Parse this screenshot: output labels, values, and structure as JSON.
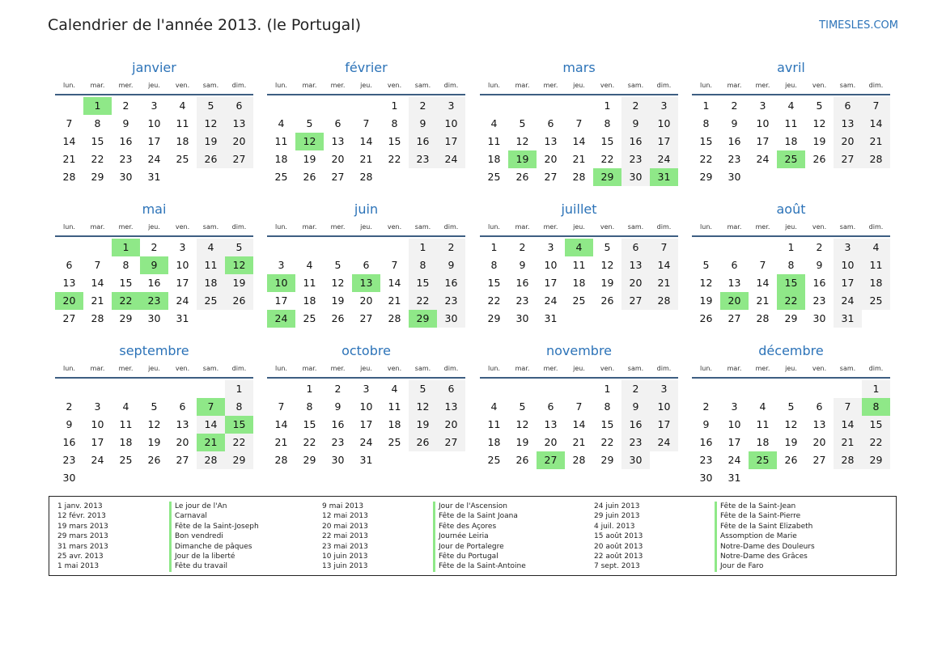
{
  "title": "Calendrier de l'année 2013. (le Portugal)",
  "site": "TIMESLES.COM",
  "colors": {
    "accent": "#2c73b8",
    "holiday": "#8fe888",
    "weekend": "#f2f2f2",
    "rule": "#3d5e82"
  },
  "weekdays": [
    "lun.",
    "mar.",
    "mer.",
    "jeu.",
    "ven.",
    "sam.",
    "dim."
  ],
  "months": [
    {
      "name": "janvier",
      "offset": 1,
      "days": 31,
      "holidays": [
        1
      ]
    },
    {
      "name": "février",
      "offset": 4,
      "days": 28,
      "holidays": [
        12
      ]
    },
    {
      "name": "mars",
      "offset": 4,
      "days": 31,
      "holidays": [
        19,
        29,
        31
      ]
    },
    {
      "name": "avril",
      "offset": 0,
      "days": 30,
      "holidays": [
        25
      ]
    },
    {
      "name": "mai",
      "offset": 2,
      "days": 31,
      "holidays": [
        1,
        9,
        12,
        20,
        22,
        23
      ]
    },
    {
      "name": "juin",
      "offset": 5,
      "days": 30,
      "holidays": [
        10,
        13,
        24,
        29
      ]
    },
    {
      "name": "juillet",
      "offset": 0,
      "days": 31,
      "holidays": [
        4
      ]
    },
    {
      "name": "août",
      "offset": 3,
      "days": 31,
      "holidays": [
        15,
        20,
        22
      ]
    },
    {
      "name": "septembre",
      "offset": 6,
      "days": 30,
      "holidays": [
        7,
        15,
        21
      ]
    },
    {
      "name": "octobre",
      "offset": 1,
      "days": 31,
      "holidays": []
    },
    {
      "name": "novembre",
      "offset": 4,
      "days": 30,
      "holidays": [
        27
      ]
    },
    {
      "name": "décembre",
      "offset": 6,
      "days": 31,
      "holidays": [
        8,
        25
      ]
    }
  ],
  "legend": {
    "dates1": [
      "1 janv. 2013",
      "12 févr. 2013",
      "19 mars 2013",
      "29 mars 2013",
      "31 mars 2013",
      "25 avr. 2013",
      "1 mai 2013"
    ],
    "names1": [
      "Le jour de l'An",
      "Carnaval",
      "Fête de la Saint-Joseph",
      "Bon vendredi",
      "Dimanche de pâques",
      "Jour de la liberté",
      "Fête du travail"
    ],
    "dates2": [
      "9 mai 2013",
      "12 mai 2013",
      "20 mai 2013",
      "22 mai 2013",
      "23 mai 2013",
      "10 juin 2013",
      "13 juin 2013"
    ],
    "names2": [
      "Jour de l'Ascension",
      "Fête de la Saint Joana",
      "Fête des Açores",
      "Journée Leiria",
      "Jour de Portalegre",
      "Fête du Portugal",
      "Fête de la Saint-Antoine"
    ],
    "dates3": [
      "24 juin 2013",
      "29 juin 2013",
      "4 juil. 2013",
      "15 août 2013",
      "20 août 2013",
      "22 août 2013",
      "7 sept. 2013"
    ],
    "names3": [
      "Fête de la Saint-Jean",
      "Fête de la Saint-Pierre",
      "Fête de la Saint Elizabeth",
      "Assomption de Marie",
      "Notre-Dame des Douleurs",
      "Notre-Dame des Grâces",
      "Jour de Faro"
    ]
  }
}
